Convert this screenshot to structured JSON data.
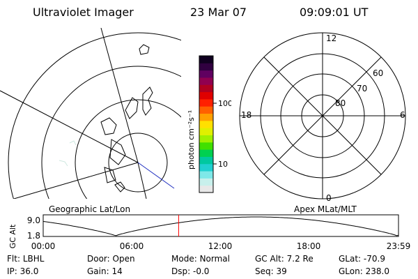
{
  "header": {
    "title": "Ultraviolet Imager",
    "date": "23 Mar 07",
    "time": "09:09:01 UT"
  },
  "panels": {
    "geo_label": "Geographic Lat/Lon",
    "apex_label": "Apex MLat/MLT"
  },
  "polar": {
    "mlt_labels": [
      "12",
      "18",
      "6",
      "0"
    ],
    "lat_labels": [
      "60",
      "70",
      "80"
    ]
  },
  "colorbar": {
    "unit_label": "photon cm⁻²s⁻¹",
    "ticks": [
      "100",
      "10"
    ],
    "colors": [
      "#e8e8e8",
      "#c8f0ec",
      "#7ee8e8",
      "#20d0d0",
      "#00c8a0",
      "#00d050",
      "#40e000",
      "#a0f000",
      "#e0f000",
      "#ffe000",
      "#ffa000",
      "#ff6000",
      "#ff2000",
      "#e00000",
      "#b00020",
      "#900050",
      "#600060",
      "#300040",
      "#100020"
    ]
  },
  "altitude_plot": {
    "ylabel": "GC Alt",
    "yticks": [
      "9.0",
      "1.8"
    ],
    "xticks": [
      "00:00",
      "06:00",
      "12:00",
      "18:00",
      "23:59"
    ],
    "current_time_hours": 9.15,
    "marker_color": "#ff0000"
  },
  "footer": {
    "row1": [
      {
        "label": "Flt:",
        "value": "LBHL"
      },
      {
        "label": "Door:",
        "value": "Open"
      },
      {
        "label": "Mode:",
        "value": "Normal"
      },
      {
        "label": "GC Alt:",
        "value": "7.2 Re"
      },
      {
        "label": "GLat:",
        "value": "-70.9"
      }
    ],
    "row2": [
      {
        "label": "IP:",
        "value": "36.0"
      },
      {
        "label": "Gain:",
        "value": "14"
      },
      {
        "label": "Dsp:",
        "value": "-0.0"
      },
      {
        "label": "Seq:",
        "value": "39"
      },
      {
        "label": "GLon:",
        "value": "238.0"
      }
    ]
  }
}
